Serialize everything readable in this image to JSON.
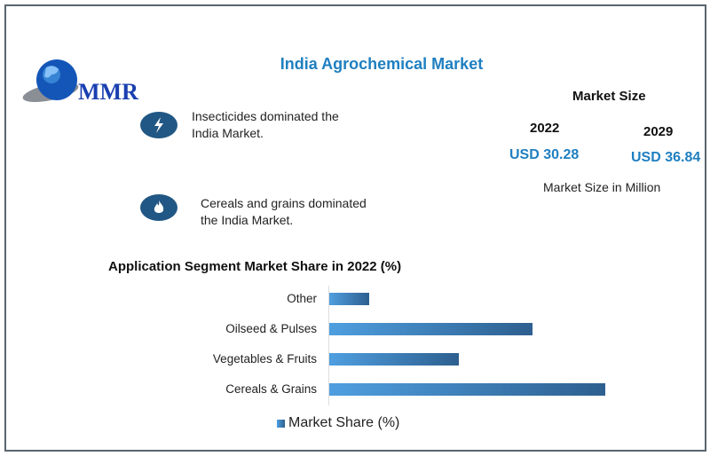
{
  "logo": {
    "text": "MMR"
  },
  "header": {
    "title": "India Agrochemical Market"
  },
  "highlights": [
    {
      "icon": "lightning-icon",
      "text1": "Insecticides dominated the",
      "text2": "India Market."
    },
    {
      "icon": "flame-icon",
      "text1": "Cereals and grains dominated",
      "text2": "the India Market."
    }
  ],
  "market_size": {
    "title": "Market Size",
    "years": [
      {
        "year": "2022",
        "value": "USD 30.28"
      },
      {
        "year": "2029",
        "value": "USD 36.84"
      }
    ],
    "unit": "Market Size in Million"
  },
  "colors": {
    "accent": "#1f7fc0",
    "icon_bg": "#215784",
    "bar_start": "#4f9fe0",
    "bar_end": "#2d5f8f"
  },
  "chart_data": {
    "type": "bar",
    "orientation": "horizontal",
    "title": "Application Segment Market Share in 2022 (%)",
    "categories": [
      "Other",
      "Oilseed & Pulses",
      "Vegetables & Fruits",
      "Cereals & Grains"
    ],
    "series": [
      {
        "name": "Market Share (%)",
        "values": [
          6.2,
          31.3,
          20.0,
          42.5
        ]
      }
    ],
    "xlim": [
      0,
      42.5
    ],
    "grid": false,
    "legend": "bottom"
  }
}
